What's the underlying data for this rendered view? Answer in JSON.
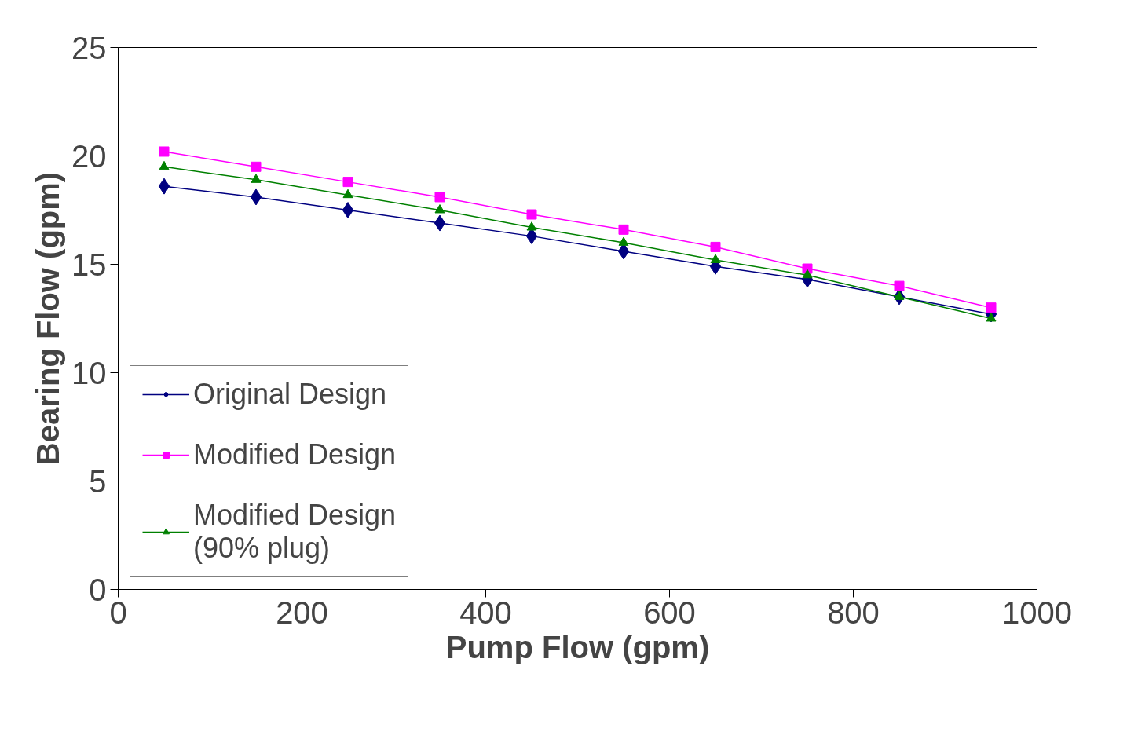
{
  "chart_data": {
    "type": "line",
    "xlabel": "Pump Flow (gpm)",
    "ylabel": "Bearing Flow (gpm)",
    "x": [
      50,
      150,
      250,
      350,
      450,
      550,
      650,
      750,
      850,
      950
    ],
    "series": [
      {
        "name": "Original Design",
        "color": "#000080",
        "marker": "diamond",
        "values": [
          18.6,
          18.1,
          17.5,
          16.9,
          16.3,
          15.6,
          14.9,
          14.3,
          13.5,
          12.7
        ]
      },
      {
        "name": "Modified Design",
        "color": "#ff00ff",
        "marker": "square",
        "values": [
          20.2,
          19.5,
          18.8,
          18.1,
          17.3,
          16.6,
          15.8,
          14.8,
          14.0,
          13.0
        ]
      },
      {
        "name": "Modified Design\n(90% plug)",
        "color": "#008000",
        "marker": "triangle",
        "values": [
          19.5,
          18.9,
          18.2,
          17.5,
          16.7,
          16.0,
          15.2,
          14.5,
          13.5,
          12.5
        ]
      }
    ],
    "xlim": [
      0,
      1000
    ],
    "xticks": [
      0,
      200,
      400,
      600,
      800,
      1000
    ],
    "ylim": [
      0,
      25
    ],
    "yticks": [
      0,
      5,
      10,
      15,
      20,
      25
    ],
    "grid": false,
    "legend": "bottom left",
    "line_style": "solid"
  }
}
